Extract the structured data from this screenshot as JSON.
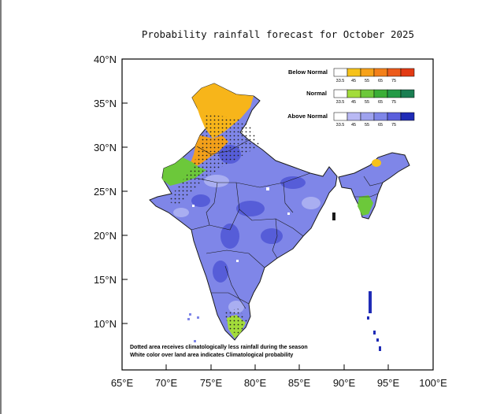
{
  "title": "Probability rainfall forecast for October 2025",
  "axes": {
    "lat_labels": [
      "40°N",
      "35°N",
      "30°N",
      "25°N",
      "20°N",
      "15°N",
      "10°N"
    ],
    "lon_labels": [
      "65°E",
      "70°E",
      "75°E",
      "80°E",
      "85°E",
      "90°E",
      "95°E",
      "100°E"
    ]
  },
  "legend": [
    {
      "label": "Below Normal",
      "ticks": [
        "33.5",
        "45",
        "55",
        "65",
        "75"
      ],
      "colors": [
        "#ffffff",
        "#f6c21a",
        "#f7a21a",
        "#f3801a",
        "#ec5a1a",
        "#e23a14"
      ]
    },
    {
      "label": "Normal",
      "ticks": [
        "33.5",
        "45",
        "55",
        "65",
        "75"
      ],
      "colors": [
        "#ffffff",
        "#a3dc3a",
        "#6cc83a",
        "#3aae36",
        "#239a46",
        "#1a7e52"
      ]
    },
    {
      "label": "Above Normal",
      "ticks": [
        "33.5",
        "45",
        "55",
        "65",
        "75"
      ],
      "colors": [
        "#ffffff",
        "#b9b9f4",
        "#9ea2ee",
        "#7f86e8",
        "#5a5fdc",
        "#1f2bb6"
      ]
    }
  ],
  "notes": {
    "line1": "Dotted area receives climatologically less rainfall during the season",
    "line2": "White color over land area indicates Climatological probability"
  },
  "map_colors": {
    "above_normal": "#7f86e8",
    "below_normal": "#f7b51a",
    "normal": "#6cc83a",
    "border": "#1a1a1a"
  }
}
